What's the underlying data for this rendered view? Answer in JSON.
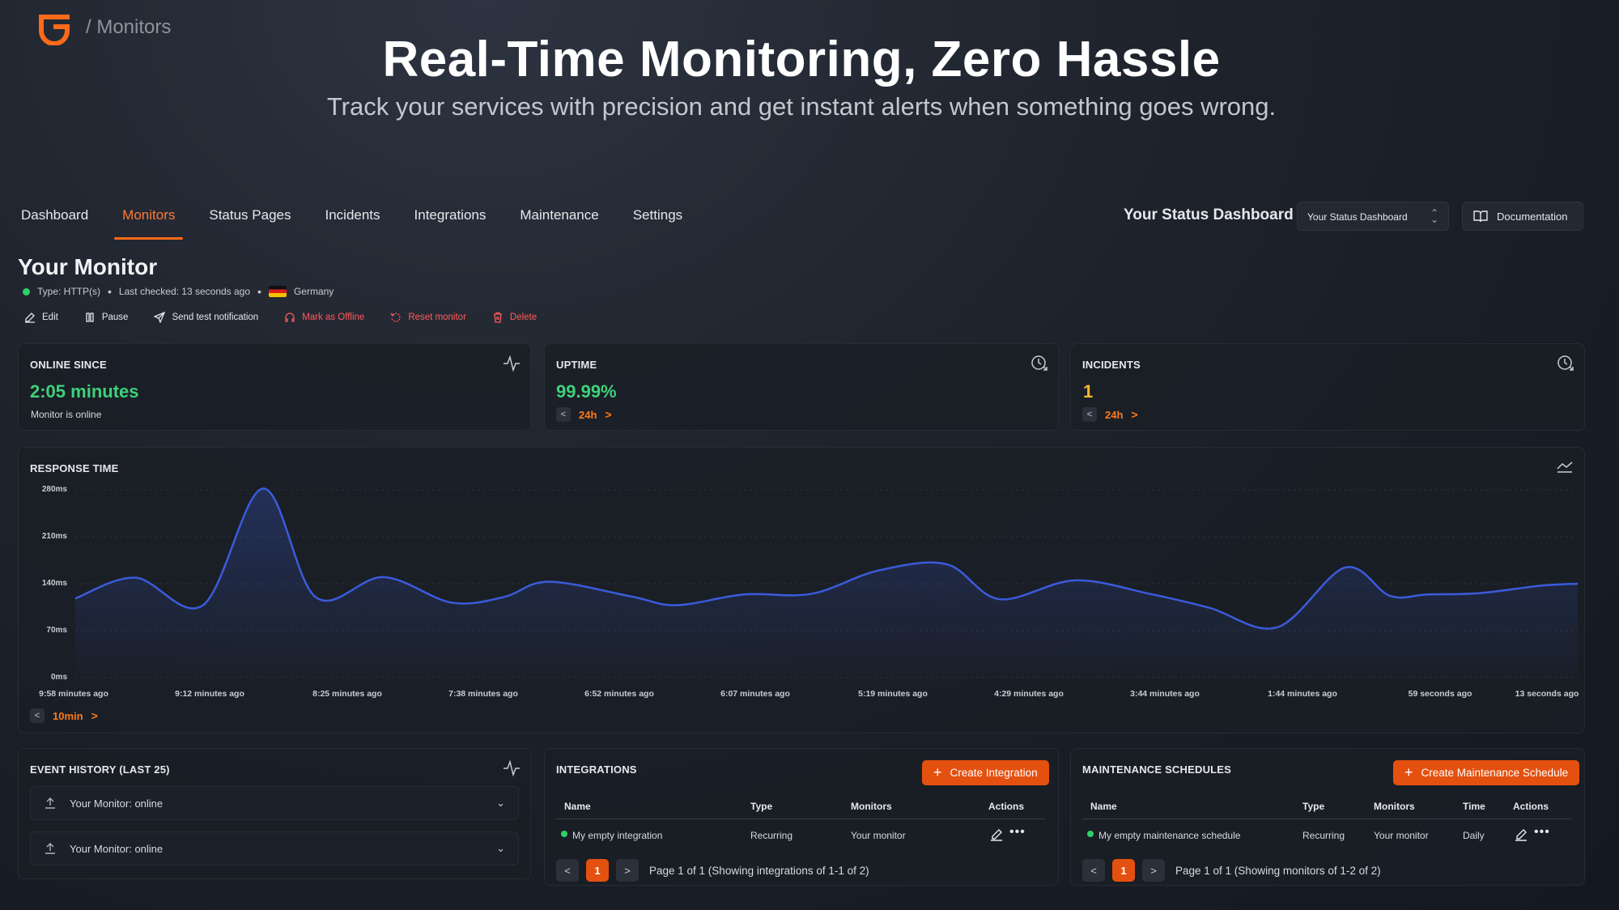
{
  "brand": {
    "breadcrumb": "/ Monitors",
    "accent": "#ff6a1a"
  },
  "hero": {
    "title": "Real-Time Monitoring, Zero Hassle",
    "subtitle": "Track your services with precision and get instant alerts when something goes wrong."
  },
  "nav": {
    "items": [
      "Dashboard",
      "Monitors",
      "Status Pages",
      "Incidents",
      "Integrations",
      "Maintenance",
      "Settings"
    ],
    "active": "Monitors",
    "dashboard_label": "Your Status Dashboard",
    "dashboard_select": "Your Status Dashboard",
    "documentation": "Documentation"
  },
  "monitor": {
    "title": "Your Monitor",
    "type": "Type: HTTP(s)",
    "last_checked": "Last checked: 13 seconds ago",
    "country": "Germany",
    "actions": {
      "edit": "Edit",
      "pause": "Pause",
      "send_test": "Send test notification",
      "mark_offline": "Mark as Offline",
      "reset": "Reset monitor",
      "delete": "Delete"
    }
  },
  "stats": {
    "online_since": {
      "label": "ONLINE SINCE",
      "value": "2:05 minutes",
      "note": "Monitor is online"
    },
    "uptime": {
      "label": "UPTIME",
      "value": "99.99%",
      "range": "24h"
    },
    "incidents": {
      "label": "INCIDENTS",
      "value": "1",
      "range": "24h"
    }
  },
  "response_time": {
    "label": "RESPONSE TIME",
    "range": "10min"
  },
  "chart_data": {
    "type": "line",
    "title": "RESPONSE TIME",
    "y_ticks": [
      "280ms",
      "210ms",
      "140ms",
      "70ms",
      "0ms"
    ],
    "ylim": [
      0,
      280
    ],
    "x_ticks": [
      "9:58 minutes ago",
      "9:12 minutes ago",
      "8:25 minutes ago",
      "7:38 minutes ago",
      "6:52 minutes ago",
      "6:07 minutes ago",
      "5:19 minutes ago",
      "4:29 minutes ago",
      "3:44 minutes ago",
      "1:44 minutes ago",
      "59 seconds ago",
      "13 seconds ago"
    ],
    "x": [
      0,
      0.04,
      0.085,
      0.125,
      0.16,
      0.205,
      0.25,
      0.285,
      0.315,
      0.37,
      0.4,
      0.445,
      0.49,
      0.535,
      0.58,
      0.615,
      0.665,
      0.715,
      0.755,
      0.8,
      0.845,
      0.875,
      0.9,
      0.935,
      0.975,
      1
    ],
    "values": [
      118,
      149,
      108,
      282,
      120,
      150,
      112,
      120,
      143,
      121,
      108,
      124,
      125,
      160,
      169,
      117,
      145,
      125,
      104,
      75,
      164,
      122,
      124,
      126,
      137,
      140
    ],
    "grid": true,
    "line_color": "#3b5bdb"
  },
  "events": {
    "label": "EVENT HISTORY (LAST 25)",
    "items": [
      "Your Monitor: online",
      "Your Monitor: online"
    ]
  },
  "integrations": {
    "label": "INTEGRATIONS",
    "create": "Create Integration",
    "columns": [
      "Name",
      "Type",
      "Monitors",
      "Actions"
    ],
    "rows": [
      {
        "name": "My empty integration",
        "type": "Recurring",
        "monitors": "Your monitor"
      }
    ],
    "page": "1",
    "footer": "Page 1 of 1 (Showing integrations of 1-1 of 2)"
  },
  "maintenance": {
    "label": "MAINTENANCE SCHEDULES",
    "create": "Create Maintenance Schedule",
    "columns": [
      "Name",
      "Type",
      "Monitors",
      "Time",
      "Actions"
    ],
    "rows": [
      {
        "name": "My empty maintenance schedule",
        "type": "Recurring",
        "monitors": "Your monitor",
        "time": "Daily"
      }
    ],
    "page": "1",
    "footer": "Page 1 of 1 (Showing monitors of 1-2 of 2)"
  }
}
